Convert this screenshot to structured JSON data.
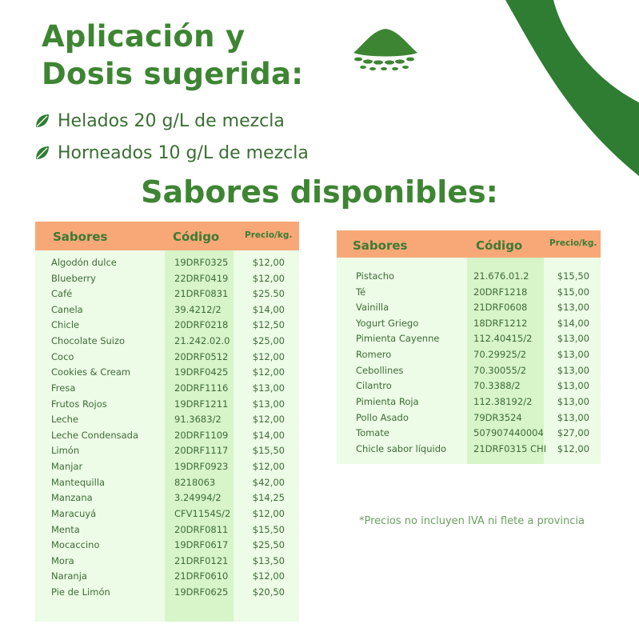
{
  "page": {
    "title_line1": "Aplicación y",
    "title_line2": "Dosis sugerida:",
    "bullets": [
      "Helados 20 g/L de mezcla",
      "Horneados 10 g/L de mezcla"
    ],
    "subtitle": "Sabores disponibles:",
    "footnote": "*Precios no incluyen IVA ni flete a provincia"
  },
  "colors": {
    "brand_green": "#3e8533",
    "header_orange": "#f8a877",
    "table_bg": "#ecfce6",
    "code_col_bg": "#d7f5c9"
  },
  "table_left": {
    "headers": {
      "flavor": "Sabores",
      "code": "Código",
      "price": "Precio/kg."
    },
    "rows": [
      {
        "flavor": "Algodón dulce",
        "code": "19DRF0325",
        "price": "$12,00"
      },
      {
        "flavor": "Blueberry",
        "code": "22DRF0419",
        "price": "$12,00"
      },
      {
        "flavor": "Café",
        "code": "21DRF0831",
        "price": "$25.50"
      },
      {
        "flavor": "Canela",
        "code": "39.4212/2",
        "price": "$14,00"
      },
      {
        "flavor": "Chicle",
        "code": "20DRF0218",
        "price": "$12,50"
      },
      {
        "flavor": "Chocolate Suizo",
        "code": "21.242.02.0",
        "price": "$25,00"
      },
      {
        "flavor": "Coco",
        "code": "20DRF0512",
        "price": "$12,00"
      },
      {
        "flavor": "Cookies & Cream",
        "code": "19DRF0425",
        "price": "$12,00"
      },
      {
        "flavor": "Fresa",
        "code": "20DRF1116",
        "price": "$13,00"
      },
      {
        "flavor": "Frutos Rojos",
        "code": "19DRF1211",
        "price": "$13,00"
      },
      {
        "flavor": "Leche",
        "code": "91.3683/2",
        "price": "$12,00"
      },
      {
        "flavor": "Leche Condensada",
        "code": "20DRF1109",
        "price": "$14,00"
      },
      {
        "flavor": "Limón",
        "code": "20DRF1117",
        "price": "$15,50"
      },
      {
        "flavor": "Manjar",
        "code": "19DRF0923",
        "price": "$12,00"
      },
      {
        "flavor": "Mantequilla",
        "code": "8218063",
        "price": "$42,00"
      },
      {
        "flavor": "Manzana",
        "code": "3.24994/2",
        "price": "$14,25"
      },
      {
        "flavor": "Maracuyá",
        "code": "CFV1154S/2",
        "price": "$12,00"
      },
      {
        "flavor": "Menta",
        "code": "20DRF0811",
        "price": "$15,50"
      },
      {
        "flavor": "Mocaccino",
        "code": "19DRF0617",
        "price": "$25,50"
      },
      {
        "flavor": "Mora",
        "code": "21DRF0121",
        "price": "$13,50"
      },
      {
        "flavor": "Naranja",
        "code": "21DRF0610",
        "price": "$12,00"
      },
      {
        "flavor": "Pie de Limón",
        "code": "19DRF0625",
        "price": "$20,50"
      }
    ]
  },
  "table_right": {
    "headers": {
      "flavor": "Sabores",
      "code": "Código",
      "price": "Precio/kg."
    },
    "rows": [
      {
        "flavor": "Pistacho",
        "code": "21.676.01.2",
        "price": "$15,50"
      },
      {
        "flavor": "Té",
        "code": "20DRF1218",
        "price": "$15,00"
      },
      {
        "flavor": "Vainilla",
        "code": "21DRF0608",
        "price": "$13,00"
      },
      {
        "flavor": "Yogurt Griego",
        "code": "18DRF1212",
        "price": "$14,00"
      },
      {
        "flavor": "Pimienta Cayenne",
        "code": "112.40415/2",
        "price": "$13,00"
      },
      {
        "flavor": "Romero",
        "code": "70.29925/2",
        "price": "$13,00"
      },
      {
        "flavor": "Cebollines",
        "code": "70.30055/2",
        "price": "$13,00"
      },
      {
        "flavor": "Cilantro",
        "code": "70.3388/2",
        "price": "$13,00"
      },
      {
        "flavor": "Pimienta Roja",
        "code": "112.38192/2",
        "price": "$13,00"
      },
      {
        "flavor": "Pollo Asado",
        "code": "79DR3524",
        "price": "$13,00"
      },
      {
        "flavor": "Tomate",
        "code": "507907440004",
        "price": "$27,00"
      },
      {
        "flavor": "Chicle sabor líquido",
        "code": "21DRF0315 CHI",
        "price": "$12,00"
      }
    ]
  }
}
